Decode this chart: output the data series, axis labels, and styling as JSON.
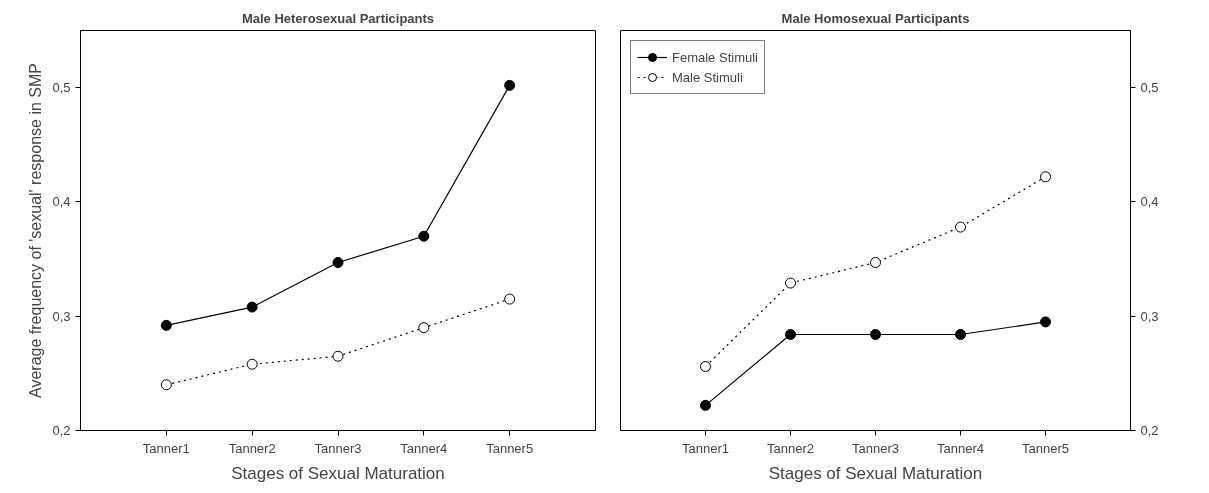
{
  "chart_data": [
    {
      "type": "line",
      "title": "Male Heterosexual Participants",
      "xlabel": "Stages of Sexual Maturation",
      "ylabel": "Average frequency of 'sexual' response in SMP",
      "categories": [
        "Tanner1",
        "Tanner2",
        "Tanner3",
        "Tanner4",
        "Tanner5"
      ],
      "series": [
        {
          "color": "#000000",
          "line_style": "solid",
          "values": [
            0.292,
            0.308,
            0.347,
            0.37,
            0.502
          ]
        },
        {
          "color": "#000000",
          "line_style": "dotted",
          "values": [
            0.24,
            0.258,
            0.265,
            0.29,
            0.315
          ]
        }
      ],
      "ylim": [
        0.2,
        0.55
      ],
      "yticks": [
        {
          "value": 0.2,
          "label": "0,2"
        },
        {
          "value": 0.3,
          "label": "0,3"
        },
        {
          "value": 0.4,
          "label": "0,4"
        },
        {
          "value": 0.5,
          "label": "0,5"
        }
      ],
      "marker": "circle",
      "grid": false
    },
    {
      "type": "line",
      "title": "Male Homosexual Participants",
      "xlabel": "Stages of Sexual Maturation",
      "categories": [
        "Tanner1",
        "Tanner2",
        "Tanner3",
        "Tanner4",
        "Tanner5"
      ],
      "series": [
        {
          "name": "Female Stimuli",
          "color": "#000000",
          "line_style": "solid",
          "values": [
            0.222,
            0.284,
            0.284,
            0.284,
            0.295
          ]
        },
        {
          "name": "Male Stimuli",
          "color": "#000000",
          "line_style": "dotted",
          "values": [
            0.256,
            0.329,
            0.347,
            0.378,
            0.422
          ]
        }
      ],
      "ylim": [
        0.2,
        0.55
      ],
      "yticks": [
        {
          "value": 0.2,
          "label": "0,2"
        },
        {
          "value": 0.3,
          "label": "0,3"
        },
        {
          "value": 0.4,
          "label": "0,4"
        },
        {
          "value": 0.5,
          "label": "0,5"
        }
      ],
      "marker": "circle",
      "grid": false,
      "legend": "top left"
    }
  ]
}
